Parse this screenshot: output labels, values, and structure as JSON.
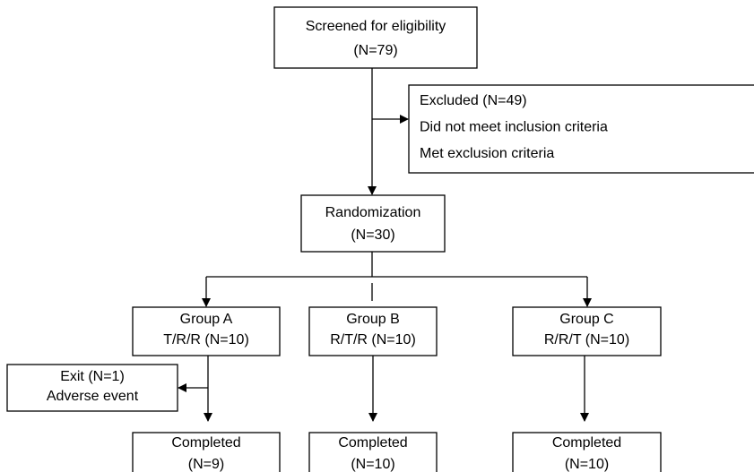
{
  "nodes": [
    {
      "lines": [
        "Screened for eligibility",
        "(N=79)"
      ]
    },
    {
      "lines": [
        "Excluded (N=49)",
        "Did not meet inclusion criteria",
        "Met exclusion criteria"
      ]
    },
    {
      "lines": [
        "Randomization",
        "(N=30)"
      ]
    },
    {
      "lines": [
        "Group A",
        "T/R/R (N=10)"
      ]
    },
    {
      "lines": [
        "Group B",
        "R/T/R (N=10)"
      ]
    },
    {
      "lines": [
        "Group C",
        "R/R/T (N=10)"
      ]
    },
    {
      "lines": [
        "Exit (N=1)",
        "Adverse event"
      ]
    },
    {
      "lines": [
        "Completed",
        "(N=9)"
      ]
    },
    {
      "lines": [
        "Completed",
        "(N=10)"
      ]
    },
    {
      "lines": [
        "Completed",
        "(N=10)"
      ]
    }
  ]
}
